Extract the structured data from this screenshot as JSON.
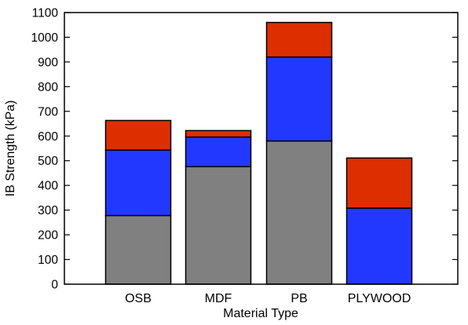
{
  "chart_data": {
    "type": "bar",
    "stacked": true,
    "categories": [
      "OSB",
      "MDF",
      "PB",
      "PLYWOOD"
    ],
    "series": [
      {
        "color": "#808080",
        "values": [
          278,
          476,
          580,
          0
        ]
      },
      {
        "color": "#2338ff",
        "values": [
          265,
          120,
          340,
          308
        ]
      },
      {
        "color": "#dd2e00",
        "values": [
          120,
          26,
          140,
          203
        ]
      }
    ],
    "xlabel": "Material Type",
    "ylabel": "IB Strength (kPa)",
    "ylim": [
      0,
      1100
    ],
    "yticks": [
      0,
      100,
      200,
      300,
      400,
      500,
      600,
      700,
      800,
      900,
      1000,
      1100
    ],
    "grid": false,
    "legend": "none"
  }
}
